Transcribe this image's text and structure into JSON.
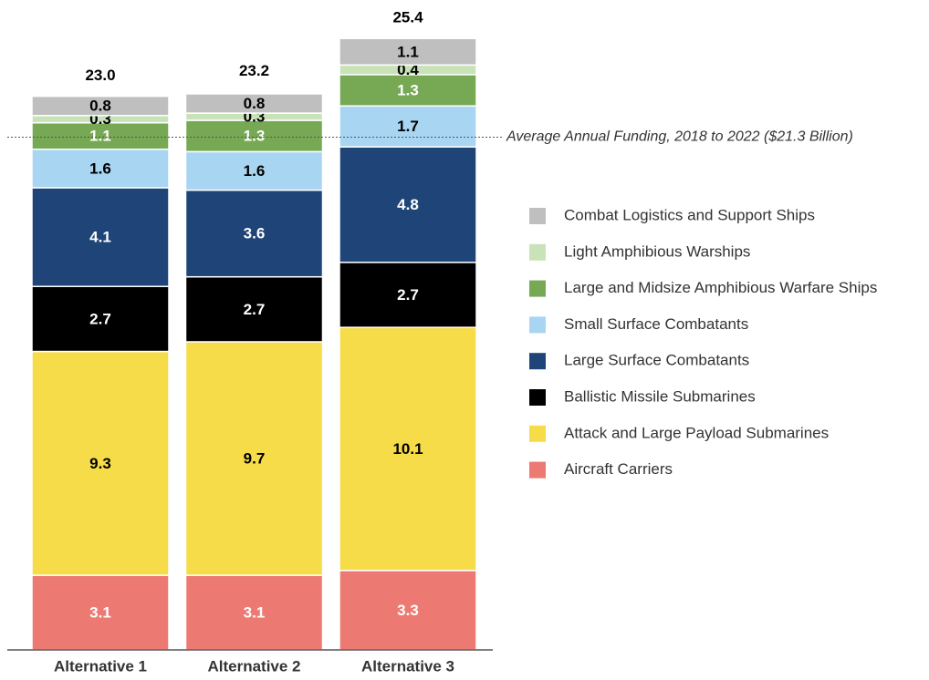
{
  "chart_data": {
    "type": "stacked_bar",
    "categories": [
      "Alternative 1",
      "Alternative 2",
      "Alternative 3"
    ],
    "series": [
      {
        "name": "Aircraft Carriers",
        "color": "#ec7a73",
        "label_color": "#ffffff",
        "values": [
          3.1,
          3.1,
          3.3
        ]
      },
      {
        "name": "Attack and Large Payload Submarines",
        "color": "#f6dc48",
        "label_color": "#000000",
        "values": [
          9.3,
          9.7,
          10.1
        ]
      },
      {
        "name": "Ballistic Missile Submarines",
        "color": "#000000",
        "label_color": "#ffffff",
        "values": [
          2.7,
          2.7,
          2.7
        ]
      },
      {
        "name": "Large Surface Combatants",
        "color": "#1f4478",
        "label_color": "#ffffff",
        "values": [
          4.1,
          3.6,
          4.8
        ]
      },
      {
        "name": "Small Surface Combatants",
        "color": "#a8d5f2",
        "label_color": "#000000",
        "values": [
          1.6,
          1.6,
          1.7
        ]
      },
      {
        "name": "Large and Midsize Amphibious Warfare Ships",
        "color": "#77a853",
        "label_color": "#ffffff",
        "values": [
          1.1,
          1.3,
          1.3
        ]
      },
      {
        "name": "Light Amphibious Warships",
        "color": "#c9e3b8",
        "label_color": "#000000",
        "values": [
          0.3,
          0.3,
          0.4
        ]
      },
      {
        "name": "Combat Logistics and Support Ships",
        "color": "#bfbfbf",
        "label_color": "#000000",
        "values": [
          0.8,
          0.8,
          1.1
        ]
      }
    ],
    "totals": [
      23,
      23.2,
      25.4
    ],
    "total_labels": [
      "23.0",
      "23.2",
      "25.4"
    ],
    "reference_line": {
      "value": 21.3,
      "label": "Average Annual Funding, 2018 to 2022 ($21.3 Billion)"
    },
    "ylim": [
      0,
      27
    ],
    "legend": "right"
  }
}
